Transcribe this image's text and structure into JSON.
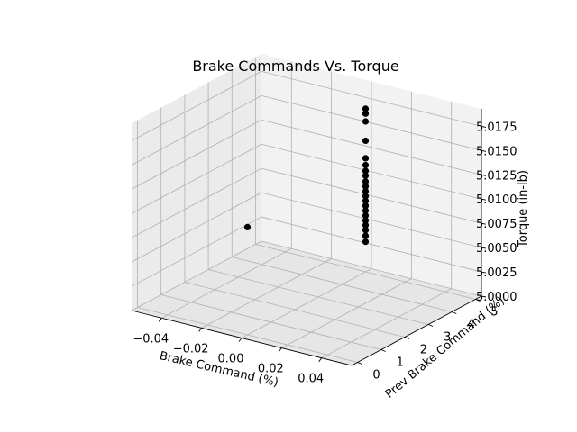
{
  "chart_data": {
    "type": "scatter",
    "title": "Brake Commands Vs. Torque",
    "xlabel": "Brake Command (%)",
    "ylabel": "Prev Brake Command (%)",
    "zlabel": "Torque (in-lb)",
    "xlim": [
      -0.055,
      0.055
    ],
    "ylim": [
      -0.25,
      5.25
    ],
    "zlim": [
      5.0,
      5.0193
    ],
    "xticks": [
      "−0.04",
      "−0.02",
      "0.00",
      "0.02",
      "0.04"
    ],
    "xtick_values": [
      -0.04,
      -0.02,
      0.0,
      0.02,
      0.04
    ],
    "yticks": [
      "0",
      "1",
      "2",
      "3",
      "4",
      "5"
    ],
    "ytick_values": [
      0,
      1,
      2,
      3,
      4,
      5
    ],
    "zticks": [
      "5.0000",
      "5.0025",
      "5.0050",
      "5.0075",
      "5.0100",
      "5.0125",
      "5.0150",
      "5.0175"
    ],
    "ztick_values": [
      5.0,
      5.0025,
      5.005,
      5.0075,
      5.01,
      5.0125,
      5.015,
      5.0175
    ],
    "grid": true,
    "marker_color": "#000000",
    "points": [
      {
        "x": 0.0,
        "y": 5.0,
        "z": 5.0168
      },
      {
        "x": 0.0,
        "y": 5.0,
        "z": 5.0163
      },
      {
        "x": 0.0,
        "y": 5.0,
        "z": 5.0155
      },
      {
        "x": 0.0,
        "y": 5.0,
        "z": 5.0135
      },
      {
        "x": 0.0,
        "y": 5.0,
        "z": 5.0117
      },
      {
        "x": 0.0,
        "y": 5.0,
        "z": 5.011
      },
      {
        "x": 0.0,
        "y": 5.0,
        "z": 5.0104
      },
      {
        "x": 0.0,
        "y": 5.0,
        "z": 5.0099
      },
      {
        "x": 0.0,
        "y": 5.0,
        "z": 5.0093
      },
      {
        "x": 0.0,
        "y": 5.0,
        "z": 5.0088
      },
      {
        "x": 0.0,
        "y": 5.0,
        "z": 5.0083
      },
      {
        "x": 0.0,
        "y": 5.0,
        "z": 5.0078
      },
      {
        "x": 0.0,
        "y": 5.0,
        "z": 5.0073
      },
      {
        "x": 0.0,
        "y": 5.0,
        "z": 5.0068
      },
      {
        "x": 0.0,
        "y": 5.0,
        "z": 5.0063
      },
      {
        "x": 0.0,
        "y": 5.0,
        "z": 5.0058
      },
      {
        "x": 0.0,
        "y": 5.0,
        "z": 5.0053
      },
      {
        "x": 0.0,
        "y": 5.0,
        "z": 5.0048
      },
      {
        "x": 0.0,
        "y": 5.0,
        "z": 5.0043
      },
      {
        "x": 0.0,
        "y": 5.0,
        "z": 5.0037
      },
      {
        "x": 0.0,
        "y": 5.0,
        "z": 5.0031
      },
      {
        "x": 0.0,
        "y": 0.0,
        "z": 5.0111
      }
    ]
  }
}
